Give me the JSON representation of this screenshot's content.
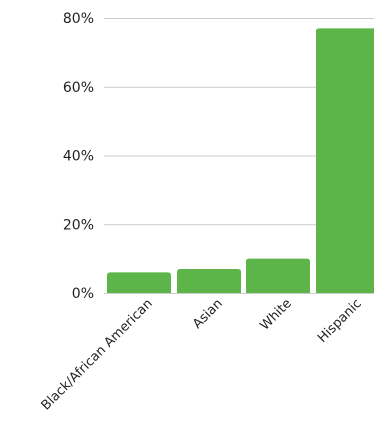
{
  "chart_data": {
    "type": "bar",
    "categories": [
      "Black/African American",
      "Asian",
      "White",
      "Hispanic"
    ],
    "values": [
      6,
      7,
      10,
      77
    ],
    "y_ticks": [
      "0%",
      "20%",
      "40%",
      "60%",
      "80%"
    ],
    "y_tick_values": [
      0,
      20,
      40,
      60,
      80
    ],
    "ylim": [
      0,
      80
    ],
    "grid": true,
    "bar_color": "#5db54a",
    "title": "",
    "xlabel": "",
    "ylabel": ""
  }
}
